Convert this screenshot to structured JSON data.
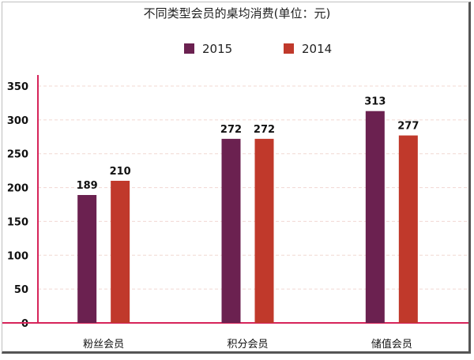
{
  "chart_data": {
    "type": "bar",
    "title": "不同类型会员的桌均消费(单位：元)",
    "xlabel": "",
    "ylabel": "",
    "categories": [
      "粉丝会员",
      "积分会员",
      "储值会员"
    ],
    "series": [
      {
        "name": "2015",
        "values": [
          189,
          272,
          313
        ],
        "color": "#6b2150"
      },
      {
        "name": "2014",
        "values": [
          210,
          272,
          277
        ],
        "color": "#c0392b"
      }
    ],
    "displayed_values": [
      [
        "189",
        "272",
        "313"
      ],
      [
        "210",
        "272",
        "277"
      ]
    ],
    "ylim": [
      0,
      350
    ],
    "yticks": [
      0,
      50,
      100,
      150,
      200,
      250,
      300,
      350
    ],
    "grid": true,
    "legend_position": "top-center",
    "axis_color": "#d6245a",
    "grid_color": "#f1d8d2"
  }
}
